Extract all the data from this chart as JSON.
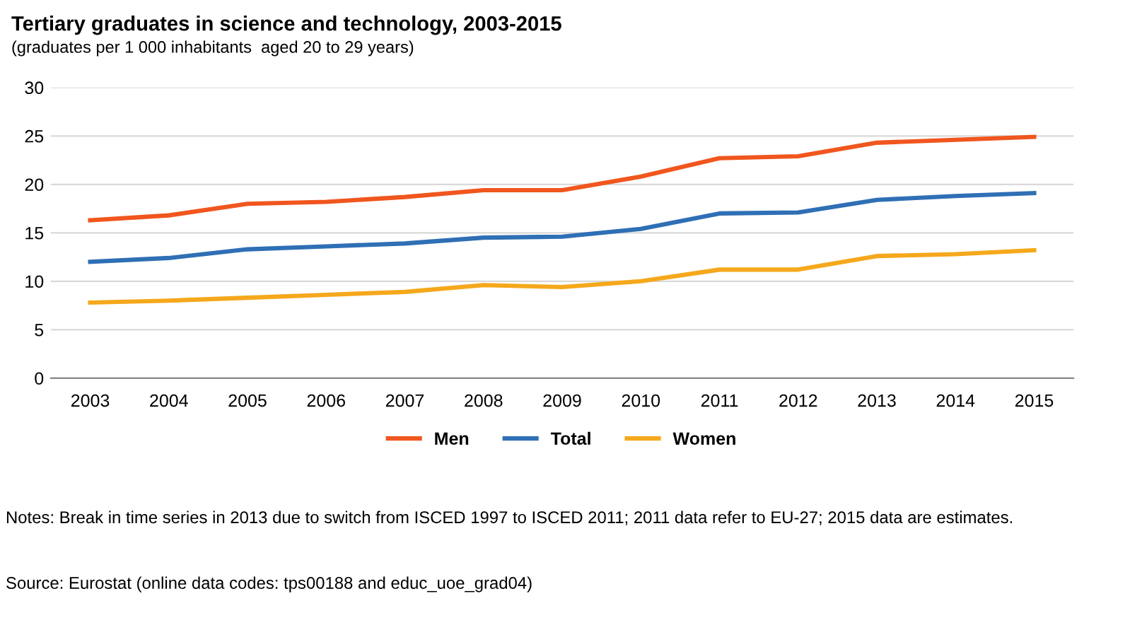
{
  "chart_data": {
    "type": "line",
    "title": "Tertiary graduates in science and technology, 2003-2015",
    "subtitle": "(graduates per 1 000 inhabitants  aged 20 to 29 years)",
    "categories": [
      "2003",
      "2004",
      "2005",
      "2006",
      "2007",
      "2008",
      "2009",
      "2010",
      "2011",
      "2012",
      "2013",
      "2014",
      "2015"
    ],
    "series": [
      {
        "name": "Men",
        "color": "#f0561e",
        "values": [
          16.3,
          16.8,
          18.0,
          18.2,
          18.7,
          19.4,
          19.4,
          20.8,
          22.7,
          22.9,
          24.3,
          24.6,
          24.9
        ]
      },
      {
        "name": "Total",
        "color": "#2f6fb5",
        "values": [
          12.0,
          12.4,
          13.3,
          13.6,
          13.9,
          14.5,
          14.6,
          15.4,
          17.0,
          17.1,
          18.4,
          18.8,
          19.1
        ]
      },
      {
        "name": "Women",
        "color": "#f5a81c",
        "values": [
          7.8,
          8.0,
          8.3,
          8.6,
          8.9,
          9.6,
          9.4,
          10.0,
          11.2,
          11.2,
          12.6,
          12.8,
          13.2
        ]
      }
    ],
    "ylim": [
      0,
      30
    ],
    "yticks": [
      0,
      5,
      10,
      15,
      20,
      25,
      30
    ],
    "grid": "y",
    "legend": "bottom",
    "marker": "none",
    "line_style": "solid",
    "annotations": [
      "Notes: Break in time series in 2013 due to switch from ISCED 1997 to ISCED 2011; 2011 data refer to EU-27; 2015 data are estimates.",
      "Source: Eurostat (online data codes: tps00188 and educ_uoe_grad04)"
    ]
  }
}
